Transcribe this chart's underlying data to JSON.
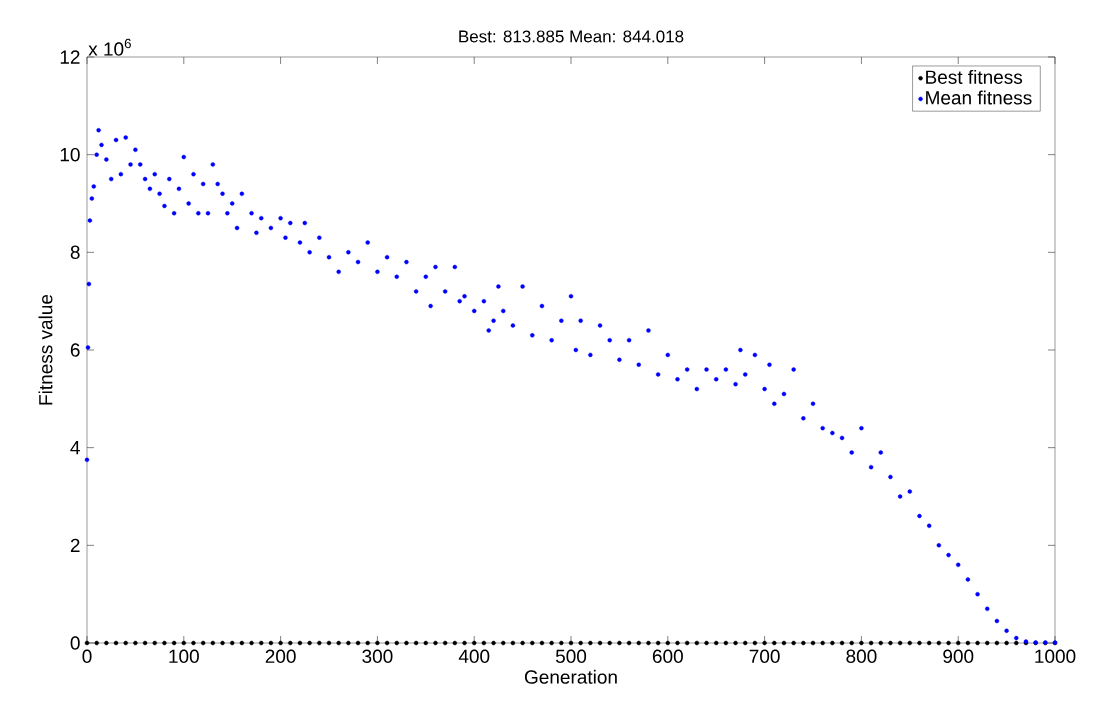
{
  "chart_data": {
    "type": "scatter",
    "title": "Best: 813.885 Mean: 844.018",
    "xlabel": "Generation",
    "ylabel": "Fitness value",
    "annotations": [
      "x 10$^{6}$"
    ],
    "xlim": [
      0,
      1000
    ],
    "ylim": [
      0,
      12
    ],
    "xticks": [
      0,
      100,
      200,
      300,
      400,
      500,
      600,
      700,
      800,
      900,
      1000
    ],
    "yticks": [
      0,
      2,
      4,
      6,
      8,
      10,
      12
    ],
    "legend": "top right",
    "grid": false,
    "marker": "circle",
    "series": [
      {
        "name": "Best fitness",
        "color": "#000000",
        "x": [
          0,
          10,
          20,
          30,
          40,
          50,
          60,
          70,
          80,
          90,
          100,
          110,
          120,
          130,
          140,
          150,
          160,
          170,
          180,
          190,
          200,
          210,
          220,
          230,
          240,
          250,
          260,
          270,
          280,
          290,
          300,
          310,
          320,
          330,
          340,
          350,
          360,
          370,
          380,
          390,
          400,
          410,
          420,
          430,
          440,
          450,
          460,
          470,
          480,
          490,
          500,
          510,
          520,
          530,
          540,
          550,
          560,
          570,
          580,
          590,
          600,
          610,
          620,
          630,
          640,
          650,
          660,
          670,
          680,
          690,
          700,
          710,
          720,
          730,
          740,
          750,
          760,
          770,
          780,
          790,
          800,
          810,
          820,
          830,
          840,
          850,
          860,
          870,
          880,
          890,
          900,
          910,
          920,
          930,
          940,
          950,
          960,
          970,
          980,
          990,
          1000
        ],
        "values": [
          0,
          0,
          0,
          0,
          0,
          0,
          0,
          0,
          0,
          0,
          0,
          0,
          0,
          0,
          0,
          0,
          0,
          0,
          0,
          0,
          0,
          0,
          0,
          0,
          0,
          0,
          0,
          0,
          0,
          0,
          0,
          0,
          0,
          0,
          0,
          0,
          0,
          0,
          0,
          0,
          0,
          0,
          0,
          0,
          0,
          0,
          0,
          0,
          0,
          0,
          0,
          0,
          0,
          0,
          0,
          0,
          0,
          0,
          0,
          0,
          0,
          0,
          0,
          0,
          0,
          0,
          0,
          0,
          0,
          0,
          0,
          0,
          0,
          0,
          0,
          0,
          0,
          0,
          0,
          0,
          0,
          0,
          0,
          0,
          0,
          0,
          0,
          0,
          0,
          0,
          0,
          0,
          0,
          0,
          0,
          0,
          0,
          0,
          0,
          0,
          0
        ]
      },
      {
        "name": "Mean fitness",
        "color": "#0000ff",
        "x": [
          0,
          1,
          2,
          3,
          5,
          7,
          10,
          12,
          15,
          20,
          25,
          30,
          35,
          40,
          45,
          50,
          55,
          60,
          65,
          70,
          75,
          80,
          85,
          90,
          95,
          100,
          105,
          110,
          115,
          120,
          125,
          130,
          135,
          140,
          145,
          150,
          155,
          160,
          170,
          175,
          180,
          190,
          200,
          205,
          210,
          220,
          225,
          230,
          240,
          250,
          260,
          270,
          280,
          290,
          300,
          310,
          320,
          330,
          340,
          350,
          355,
          360,
          370,
          380,
          385,
          390,
          400,
          410,
          415,
          420,
          425,
          430,
          440,
          450,
          460,
          470,
          480,
          490,
          500,
          505,
          510,
          520,
          530,
          540,
          550,
          560,
          570,
          580,
          590,
          600,
          610,
          620,
          630,
          640,
          650,
          660,
          670,
          675,
          680,
          690,
          700,
          705,
          710,
          720,
          730,
          740,
          750,
          760,
          770,
          780,
          790,
          800,
          810,
          820,
          830,
          840,
          850,
          860,
          870,
          880,
          890,
          900,
          910,
          920,
          930,
          940,
          950,
          960,
          970,
          980,
          990,
          1000
        ],
        "values": [
          3.75,
          6.05,
          7.35,
          8.65,
          9.1,
          9.35,
          10.0,
          10.5,
          10.2,
          9.9,
          9.5,
          10.3,
          9.6,
          10.35,
          9.8,
          10.1,
          9.8,
          9.5,
          9.3,
          9.6,
          9.2,
          8.95,
          9.5,
          8.8,
          9.3,
          9.95,
          9.0,
          9.6,
          8.8,
          9.4,
          8.8,
          9.8,
          9.4,
          9.2,
          8.8,
          9.0,
          8.5,
          9.2,
          8.8,
          8.4,
          8.7,
          8.5,
          8.7,
          8.3,
          8.6,
          8.2,
          8.6,
          8.0,
          8.3,
          7.9,
          7.6,
          8.0,
          7.8,
          8.2,
          7.6,
          7.9,
          7.5,
          7.8,
          7.2,
          7.5,
          6.9,
          7.7,
          7.2,
          7.7,
          7.0,
          7.1,
          6.8,
          7.0,
          6.4,
          6.6,
          7.3,
          6.8,
          6.5,
          7.3,
          6.3,
          6.9,
          6.2,
          6.6,
          7.1,
          6.0,
          6.6,
          5.9,
          6.5,
          6.2,
          5.8,
          6.2,
          5.7,
          6.4,
          5.5,
          5.9,
          5.4,
          5.6,
          5.2,
          5.6,
          5.4,
          5.6,
          5.3,
          6.0,
          5.5,
          5.9,
          5.2,
          5.7,
          4.9,
          5.1,
          5.6,
          4.6,
          4.9,
          4.4,
          4.3,
          4.2,
          3.9,
          4.4,
          3.6,
          3.9,
          3.4,
          3.0,
          3.1,
          2.6,
          2.4,
          2.0,
          1.8,
          1.6,
          1.3,
          1.0,
          0.7,
          0.45,
          0.25,
          0.1,
          0.03,
          0.01,
          0.01,
          0.01
        ]
      }
    ]
  }
}
